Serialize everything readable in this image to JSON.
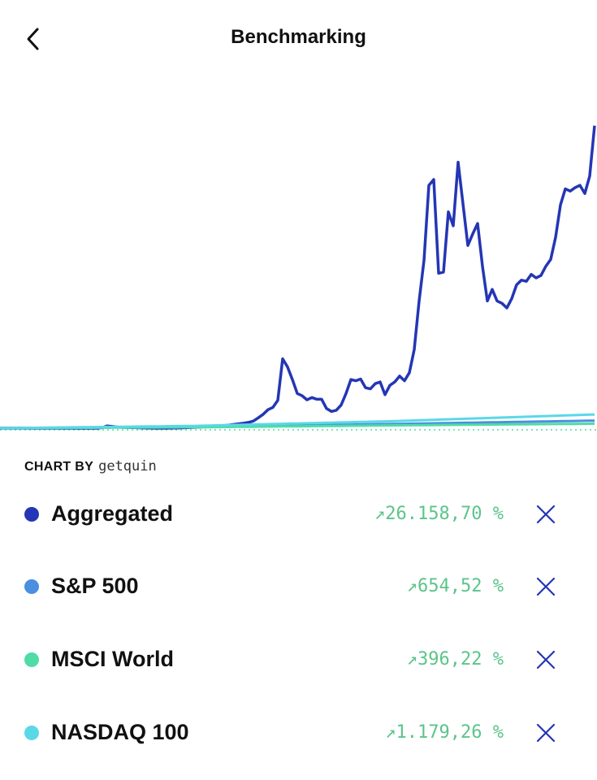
{
  "header": {
    "title": "Benchmarking"
  },
  "credit": {
    "label": "CHART BY",
    "brand": "getquin"
  },
  "chart_data": {
    "type": "line",
    "ylim": [
      0,
      30000
    ],
    "series": [
      {
        "name": "Aggregated",
        "color": "#2436b5",
        "change": "↗26.158,70 %",
        "values": [
          0,
          0,
          0,
          0,
          0,
          0,
          0,
          0,
          0,
          0,
          0,
          0,
          0,
          0,
          0,
          0,
          0,
          0,
          0,
          0,
          0,
          50,
          200,
          150,
          100,
          80,
          60,
          50,
          40,
          30,
          20,
          10,
          0,
          0,
          0,
          10,
          20,
          30,
          40,
          60,
          80,
          100,
          120,
          150,
          170,
          200,
          230,
          270,
          320,
          380,
          430,
          500,
          620,
          900,
          1200,
          1600,
          1800,
          2400,
          6000,
          5300,
          4200,
          3000,
          2800,
          2450,
          2650,
          2500,
          2500,
          1700,
          1450,
          1550,
          2000,
          3000,
          4200,
          4100,
          4250,
          3500,
          3400,
          3850,
          4000,
          2900,
          3700,
          4000,
          4500,
          4100,
          4800,
          6800,
          11000,
          14500,
          21000,
          21500,
          13400,
          13500,
          18700,
          17500,
          23000,
          19400,
          15800,
          16800,
          17700,
          14000,
          11000,
          12000,
          11000,
          10800,
          10400,
          11200,
          12400,
          12800,
          12700,
          13300,
          13000,
          13200,
          14000,
          14600,
          16500,
          19300,
          20700,
          20500,
          20800,
          21000,
          20300,
          21800,
          26158.7
        ]
      },
      {
        "name": "S&P 500",
        "color": "#4a8fe0",
        "change": "↗654,52 %",
        "values": [
          0,
          3,
          6,
          9,
          12,
          15,
          18,
          21,
          24,
          27,
          30,
          33,
          36,
          39,
          42,
          45,
          48,
          51,
          54,
          57,
          60,
          63,
          66,
          69,
          72,
          75,
          78,
          81,
          84,
          87,
          90,
          93,
          96,
          99,
          102,
          105,
          108,
          111,
          114,
          117,
          120,
          126,
          132,
          138,
          144,
          150,
          156,
          162,
          168,
          174,
          180,
          186,
          192,
          198,
          204,
          210,
          216,
          222,
          228,
          234,
          240,
          246,
          252,
          258,
          264,
          270,
          276,
          282,
          288,
          294,
          300,
          306,
          312,
          318,
          324,
          330,
          336,
          342,
          348,
          354,
          360,
          367,
          374,
          381,
          388,
          395,
          402,
          409,
          416,
          423,
          430,
          437,
          444,
          451,
          458,
          465,
          472,
          479,
          486,
          493,
          500,
          507,
          514,
          521,
          528,
          535,
          542,
          549,
          556,
          563,
          570,
          577,
          584,
          591,
          598,
          605,
          612,
          619,
          626,
          633,
          640,
          647,
          654.52
        ]
      },
      {
        "name": "MSCI World",
        "color": "#4fdca6",
        "change": "↗396,22 %",
        "values": [
          0,
          2,
          4,
          6,
          8,
          10,
          12,
          14,
          16,
          18,
          20,
          22,
          24,
          26,
          28,
          30,
          32,
          34,
          36,
          38,
          40,
          42,
          44,
          46,
          48,
          50,
          52,
          54,
          56,
          58,
          60,
          62,
          64,
          66,
          68,
          70,
          72,
          74,
          76,
          78,
          80,
          84,
          88,
          92,
          96,
          100,
          104,
          108,
          112,
          116,
          120,
          124,
          128,
          132,
          136,
          140,
          144,
          148,
          152,
          156,
          160,
          164,
          168,
          172,
          176,
          180,
          184,
          188,
          192,
          196,
          200,
          204,
          208,
          212,
          216,
          220,
          224,
          228,
          232,
          236,
          240,
          244,
          247.5,
          251,
          254.5,
          258,
          261.5,
          265,
          268.5,
          272,
          275.5,
          279,
          282.5,
          286,
          289.5,
          293,
          296.5,
          300,
          303.5,
          307,
          310.5,
          314,
          317.5,
          321,
          324.5,
          328,
          331.5,
          335,
          338.5,
          342,
          345.5,
          349,
          352.5,
          356,
          359.5,
          363,
          366.5,
          370,
          373.5,
          377,
          380.5,
          384,
          396.22
        ]
      },
      {
        "name": "NASDAQ 100",
        "color": "#5ad8e8",
        "change": "↗1.179,26 %",
        "values": [
          0,
          5,
          10,
          15,
          20,
          25,
          30,
          35,
          40,
          45,
          50,
          55,
          60,
          65,
          70,
          75,
          80,
          85,
          90,
          95,
          100,
          105,
          110,
          115,
          120,
          125,
          130,
          135,
          140,
          145,
          150,
          155,
          160,
          165,
          170,
          175,
          180,
          185,
          190,
          195,
          200,
          210,
          220,
          230,
          240,
          250,
          260,
          270,
          280,
          290,
          300,
          310,
          320,
          330,
          340,
          350,
          360,
          370,
          380,
          390,
          400,
          410,
          420,
          430,
          440,
          450,
          460,
          470,
          480,
          490,
          500,
          510,
          520,
          530,
          540,
          550,
          560,
          570,
          580,
          590,
          600,
          614,
          628,
          642,
          656,
          670,
          684,
          698,
          712,
          726,
          740,
          754,
          768,
          782,
          796,
          810,
          824,
          838,
          852,
          866,
          880,
          894,
          908,
          922,
          936,
          950,
          964,
          978,
          992,
          1006,
          1020,
          1034,
          1048,
          1062,
          1076,
          1090,
          1104,
          1118,
          1132,
          1146,
          1160,
          1170,
          1179.26
        ]
      }
    ]
  }
}
